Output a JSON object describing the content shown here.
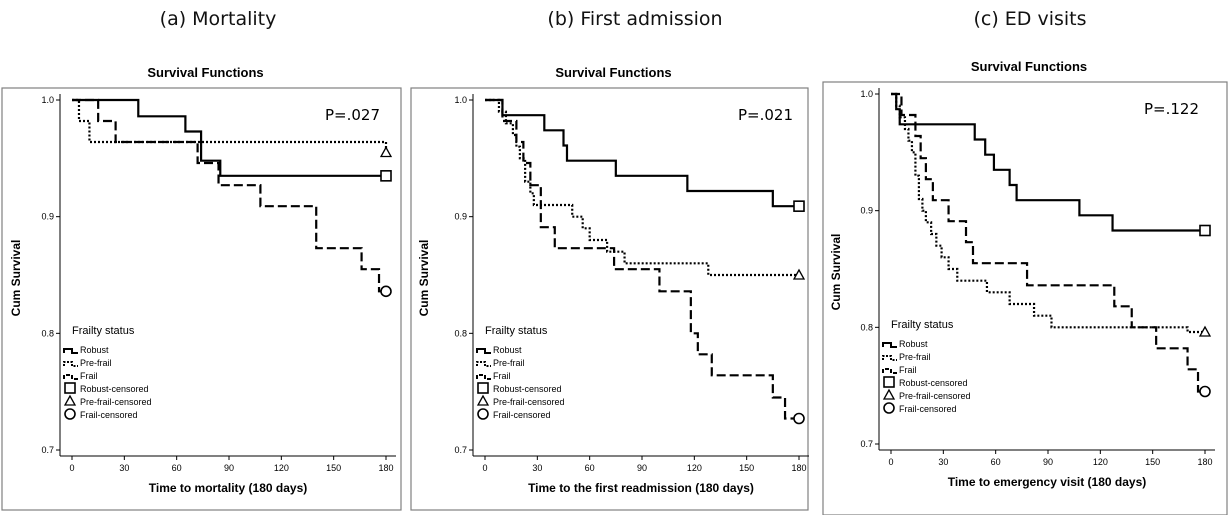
{
  "panels": [
    {
      "caption": "(a) Mortality"
    },
    {
      "caption": "(b) First admission"
    },
    {
      "caption": "(c) ED visits"
    }
  ],
  "colors": {
    "line": "#000000",
    "frame": "#808080",
    "background": "#ffffff"
  },
  "chart_data": [
    {
      "type": "line",
      "title": "Survival Functions",
      "xlabel": "Time to mortality (180 days)",
      "ylabel": "Cum Survival",
      "annotation": "P=.027",
      "xlim": [
        0,
        180
      ],
      "ylim": [
        0.7,
        1.0
      ],
      "xticks": [
        0,
        30,
        60,
        90,
        120,
        150,
        180
      ],
      "yticks": [
        0.7,
        0.8,
        0.9,
        1.0
      ],
      "ytick_labels": [
        "0.7",
        "0.8",
        "0.9",
        "1.0"
      ],
      "legend_title": "Frailty status",
      "legend": [
        "Robust",
        "Pre-frail",
        "Frail",
        "Robust-censored",
        "Pre-frail-censored",
        "Frail-censored"
      ],
      "legend_placement": "bottom-left",
      "series": [
        {
          "name": "Robust",
          "style": "solid",
          "censor_marker": "square",
          "steps": [
            [
              0,
              1.0
            ],
            [
              38,
              0.986
            ],
            [
              65,
              0.973
            ],
            [
              74,
              0.948
            ],
            [
              85,
              0.935
            ],
            [
              180,
              0.935
            ]
          ]
        },
        {
          "name": "Pre-frail",
          "style": "dotted",
          "censor_marker": "triangle",
          "steps": [
            [
              0,
              1.0
            ],
            [
              4,
              0.982
            ],
            [
              10,
              0.964
            ],
            [
              180,
              0.955
            ]
          ]
        },
        {
          "name": "Frail",
          "style": "dashed",
          "censor_marker": "circle",
          "steps": [
            [
              0,
              1.0
            ],
            [
              15,
              0.982
            ],
            [
              25,
              0.964
            ],
            [
              72,
              0.946
            ],
            [
              84,
              0.927
            ],
            [
              108,
              0.909
            ],
            [
              140,
              0.873
            ],
            [
              166,
              0.855
            ],
            [
              176,
              0.836
            ],
            [
              180,
              0.836
            ]
          ]
        }
      ]
    },
    {
      "type": "line",
      "title": "Survival Functions",
      "xlabel": "Time to the first readmission (180 days)",
      "ylabel": "Cum Survival",
      "annotation": "P=.021",
      "xlim": [
        0,
        180
      ],
      "ylim": [
        0.7,
        1.0
      ],
      "xticks": [
        0,
        30,
        60,
        90,
        120,
        150,
        180
      ],
      "yticks": [
        0.7,
        0.8,
        0.9,
        1.0
      ],
      "ytick_labels": [
        "0.7",
        "0.8",
        "0.9",
        "1.0"
      ],
      "legend_title": "Frailty status",
      "legend": [
        "Robust",
        "Pre-frail",
        "Frail",
        "Robust-censored",
        "Pre-frail-censored",
        "Frail-censored"
      ],
      "legend_placement": "bottom-left",
      "series": [
        {
          "name": "Robust",
          "style": "solid",
          "censor_marker": "square",
          "steps": [
            [
              0,
              1.0
            ],
            [
              10,
              0.987
            ],
            [
              34,
              0.974
            ],
            [
              45,
              0.961
            ],
            [
              47,
              0.948
            ],
            [
              75,
              0.935
            ],
            [
              116,
              0.922
            ],
            [
              165,
              0.909
            ],
            [
              180,
              0.909
            ]
          ]
        },
        {
          "name": "Pre-frail",
          "style": "dotted",
          "censor_marker": "triangle",
          "steps": [
            [
              0,
              1.0
            ],
            [
              8,
              0.99
            ],
            [
              12,
              0.98
            ],
            [
              16,
              0.97
            ],
            [
              18,
              0.96
            ],
            [
              20,
              0.95
            ],
            [
              23,
              0.93
            ],
            [
              26,
              0.92
            ],
            [
              28,
              0.91
            ],
            [
              50,
              0.9
            ],
            [
              56,
              0.89
            ],
            [
              60,
              0.88
            ],
            [
              70,
              0.87
            ],
            [
              80,
              0.86
            ],
            [
              128,
              0.85
            ],
            [
              180,
              0.85
            ]
          ]
        },
        {
          "name": "Frail",
          "style": "dashed",
          "censor_marker": "circle",
          "steps": [
            [
              0,
              1.0
            ],
            [
              10,
              0.982
            ],
            [
              18,
              0.964
            ],
            [
              22,
              0.946
            ],
            [
              26,
              0.927
            ],
            [
              32,
              0.891
            ],
            [
              40,
              0.873
            ],
            [
              74,
              0.855
            ],
            [
              100,
              0.836
            ],
            [
              118,
              0.8
            ],
            [
              122,
              0.782
            ],
            [
              130,
              0.764
            ],
            [
              165,
              0.745
            ],
            [
              172,
              0.727
            ],
            [
              180,
              0.727
            ]
          ]
        }
      ]
    },
    {
      "type": "line",
      "title": "Survival Functions",
      "xlabel": "Time to emergency visit (180 days)",
      "ylabel": "Cum Survival",
      "annotation": "P=.122",
      "xlim": [
        0,
        180
      ],
      "ylim": [
        0.7,
        1.0
      ],
      "xticks": [
        0,
        30,
        60,
        90,
        120,
        150,
        180
      ],
      "yticks": [
        0.7,
        0.8,
        0.9,
        1.0
      ],
      "ytick_labels": [
        "0.7",
        "0.8",
        "0.9",
        "1.0"
      ],
      "legend_title": "Frailty status",
      "legend": [
        "Robust",
        "Pre-frail",
        "Frail",
        "Robust-censored",
        "Pre-frail-censored",
        "Frail-censored"
      ],
      "legend_placement": "bottom-left",
      "series": [
        {
          "name": "Robust",
          "style": "solid",
          "censor_marker": "square",
          "steps": [
            [
              0,
              1.0
            ],
            [
              3,
              0.987
            ],
            [
              5,
              0.974
            ],
            [
              48,
              0.961
            ],
            [
              54,
              0.948
            ],
            [
              59,
              0.935
            ],
            [
              68,
              0.922
            ],
            [
              72,
              0.909
            ],
            [
              108,
              0.896
            ],
            [
              127,
              0.883
            ],
            [
              180,
              0.883
            ]
          ]
        },
        {
          "name": "Pre-frail",
          "style": "dotted",
          "censor_marker": "triangle",
          "steps": [
            [
              0,
              1.0
            ],
            [
              3,
              0.99
            ],
            [
              5,
              0.98
            ],
            [
              8,
              0.97
            ],
            [
              10,
              0.96
            ],
            [
              12,
              0.95
            ],
            [
              14,
              0.93
            ],
            [
              16,
              0.91
            ],
            [
              18,
              0.9
            ],
            [
              20,
              0.89
            ],
            [
              23,
              0.88
            ],
            [
              26,
              0.87
            ],
            [
              29,
              0.86
            ],
            [
              33,
              0.85
            ],
            [
              38,
              0.84
            ],
            [
              55,
              0.83
            ],
            [
              68,
              0.82
            ],
            [
              82,
              0.81
            ],
            [
              92,
              0.8
            ],
            [
              170,
              0.796
            ],
            [
              180,
              0.796
            ]
          ]
        },
        {
          "name": "Frail",
          "style": "dashed",
          "censor_marker": "circle",
          "steps": [
            [
              0,
              1.0
            ],
            [
              6,
              0.982
            ],
            [
              14,
              0.964
            ],
            [
              17,
              0.945
            ],
            [
              20,
              0.927
            ],
            [
              24,
              0.909
            ],
            [
              33,
              0.891
            ],
            [
              43,
              0.873
            ],
            [
              47,
              0.855
            ],
            [
              78,
              0.836
            ],
            [
              128,
              0.818
            ],
            [
              138,
              0.8
            ],
            [
              152,
              0.782
            ],
            [
              170,
              0.764
            ],
            [
              176,
              0.745
            ],
            [
              180,
              0.745
            ]
          ]
        }
      ]
    }
  ]
}
